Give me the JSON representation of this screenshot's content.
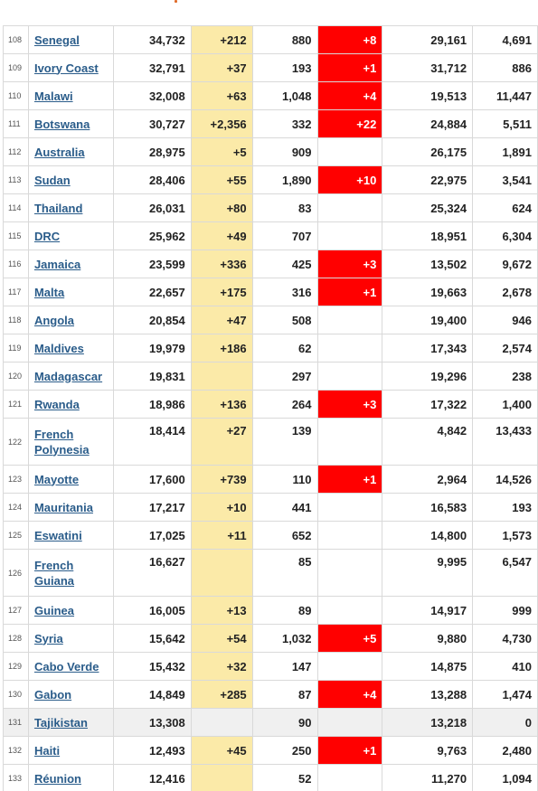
{
  "table": {
    "rows": [
      {
        "rank": "108",
        "country": "Senegal",
        "total_cases": "34,732",
        "new_cases": "+212",
        "total_deaths": "880",
        "new_deaths": "+8",
        "recovered": "29,161",
        "active": "4,691"
      },
      {
        "rank": "109",
        "country": "Ivory Coast",
        "total_cases": "32,791",
        "new_cases": "+37",
        "total_deaths": "193",
        "new_deaths": "+1",
        "recovered": "31,712",
        "active": "886"
      },
      {
        "rank": "110",
        "country": "Malawi",
        "total_cases": "32,008",
        "new_cases": "+63",
        "total_deaths": "1,048",
        "new_deaths": "+4",
        "recovered": "19,513",
        "active": "11,447"
      },
      {
        "rank": "111",
        "country": "Botswana",
        "total_cases": "30,727",
        "new_cases": "+2,356",
        "total_deaths": "332",
        "new_deaths": "+22",
        "recovered": "24,884",
        "active": "5,511"
      },
      {
        "rank": "112",
        "country": "Australia",
        "total_cases": "28,975",
        "new_cases": "+5",
        "total_deaths": "909",
        "new_deaths": "",
        "recovered": "26,175",
        "active": "1,891"
      },
      {
        "rank": "113",
        "country": "Sudan",
        "total_cases": "28,406",
        "new_cases": "+55",
        "total_deaths": "1,890",
        "new_deaths": "+10",
        "recovered": "22,975",
        "active": "3,541"
      },
      {
        "rank": "114",
        "country": "Thailand",
        "total_cases": "26,031",
        "new_cases": "+80",
        "total_deaths": "83",
        "new_deaths": "",
        "recovered": "25,324",
        "active": "624"
      },
      {
        "rank": "115",
        "country": "DRC",
        "total_cases": "25,962",
        "new_cases": "+49",
        "total_deaths": "707",
        "new_deaths": "",
        "recovered": "18,951",
        "active": "6,304"
      },
      {
        "rank": "116",
        "country": "Jamaica",
        "total_cases": "23,599",
        "new_cases": "+336",
        "total_deaths": "425",
        "new_deaths": "+3",
        "recovered": "13,502",
        "active": "9,672"
      },
      {
        "rank": "117",
        "country": "Malta",
        "total_cases": "22,657",
        "new_cases": "+175",
        "total_deaths": "316",
        "new_deaths": "+1",
        "recovered": "19,663",
        "active": "2,678"
      },
      {
        "rank": "118",
        "country": "Angola",
        "total_cases": "20,854",
        "new_cases": "+47",
        "total_deaths": "508",
        "new_deaths": "",
        "recovered": "19,400",
        "active": "946"
      },
      {
        "rank": "119",
        "country": "Maldives",
        "total_cases": "19,979",
        "new_cases": "+186",
        "total_deaths": "62",
        "new_deaths": "",
        "recovered": "17,343",
        "active": "2,574"
      },
      {
        "rank": "120",
        "country": "Madagascar",
        "total_cases": "19,831",
        "new_cases": "",
        "total_deaths": "297",
        "new_deaths": "",
        "recovered": "19,296",
        "active": "238"
      },
      {
        "rank": "121",
        "country": "Rwanda",
        "total_cases": "18,986",
        "new_cases": "+136",
        "total_deaths": "264",
        "new_deaths": "+3",
        "recovered": "17,322",
        "active": "1,400"
      },
      {
        "rank": "122",
        "country": "French Polynesia",
        "total_cases": "18,414",
        "new_cases": "+27",
        "total_deaths": "139",
        "new_deaths": "",
        "recovered": "4,842",
        "active": "13,433",
        "tall": true
      },
      {
        "rank": "123",
        "country": "Mayotte",
        "total_cases": "17,600",
        "new_cases": "+739",
        "total_deaths": "110",
        "new_deaths": "+1",
        "recovered": "2,964",
        "active": "14,526"
      },
      {
        "rank": "124",
        "country": "Mauritania",
        "total_cases": "17,217",
        "new_cases": "+10",
        "total_deaths": "441",
        "new_deaths": "",
        "recovered": "16,583",
        "active": "193"
      },
      {
        "rank": "125",
        "country": "Eswatini",
        "total_cases": "17,025",
        "new_cases": "+11",
        "total_deaths": "652",
        "new_deaths": "",
        "recovered": "14,800",
        "active": "1,573"
      },
      {
        "rank": "126",
        "country": "French Guiana",
        "total_cases": "16,627",
        "new_cases": "",
        "total_deaths": "85",
        "new_deaths": "",
        "recovered": "9,995",
        "active": "6,547",
        "tall": true
      },
      {
        "rank": "127",
        "country": "Guinea",
        "total_cases": "16,005",
        "new_cases": "+13",
        "total_deaths": "89",
        "new_deaths": "",
        "recovered": "14,917",
        "active": "999"
      },
      {
        "rank": "128",
        "country": "Syria",
        "total_cases": "15,642",
        "new_cases": "+54",
        "total_deaths": "1,032",
        "new_deaths": "+5",
        "recovered": "9,880",
        "active": "4,730"
      },
      {
        "rank": "129",
        "country": "Cabo Verde",
        "total_cases": "15,432",
        "new_cases": "+32",
        "total_deaths": "147",
        "new_deaths": "",
        "recovered": "14,875",
        "active": "410"
      },
      {
        "rank": "130",
        "country": "Gabon",
        "total_cases": "14,849",
        "new_cases": "+285",
        "total_deaths": "87",
        "new_deaths": "+4",
        "recovered": "13,288",
        "active": "1,474"
      },
      {
        "rank": "131",
        "country": "Tajikistan",
        "total_cases": "13,308",
        "new_cases": "",
        "total_deaths": "90",
        "new_deaths": "",
        "recovered": "13,218",
        "active": "0",
        "gray": true
      },
      {
        "rank": "132",
        "country": "Haiti",
        "total_cases": "12,493",
        "new_cases": "+45",
        "total_deaths": "250",
        "new_deaths": "+1",
        "recovered": "9,763",
        "active": "2,480"
      },
      {
        "rank": "133",
        "country": "Réunion",
        "total_cases": "12,416",
        "new_cases": "",
        "total_deaths": "52",
        "new_deaths": "",
        "recovered": "11,270",
        "active": "1,094"
      }
    ]
  },
  "colors": {
    "new_cases_bg": "#fbeaa8",
    "new_deaths_bg": "#ff0000",
    "link": "#2a5c8a",
    "highlight_row": "#f0f0f0"
  }
}
